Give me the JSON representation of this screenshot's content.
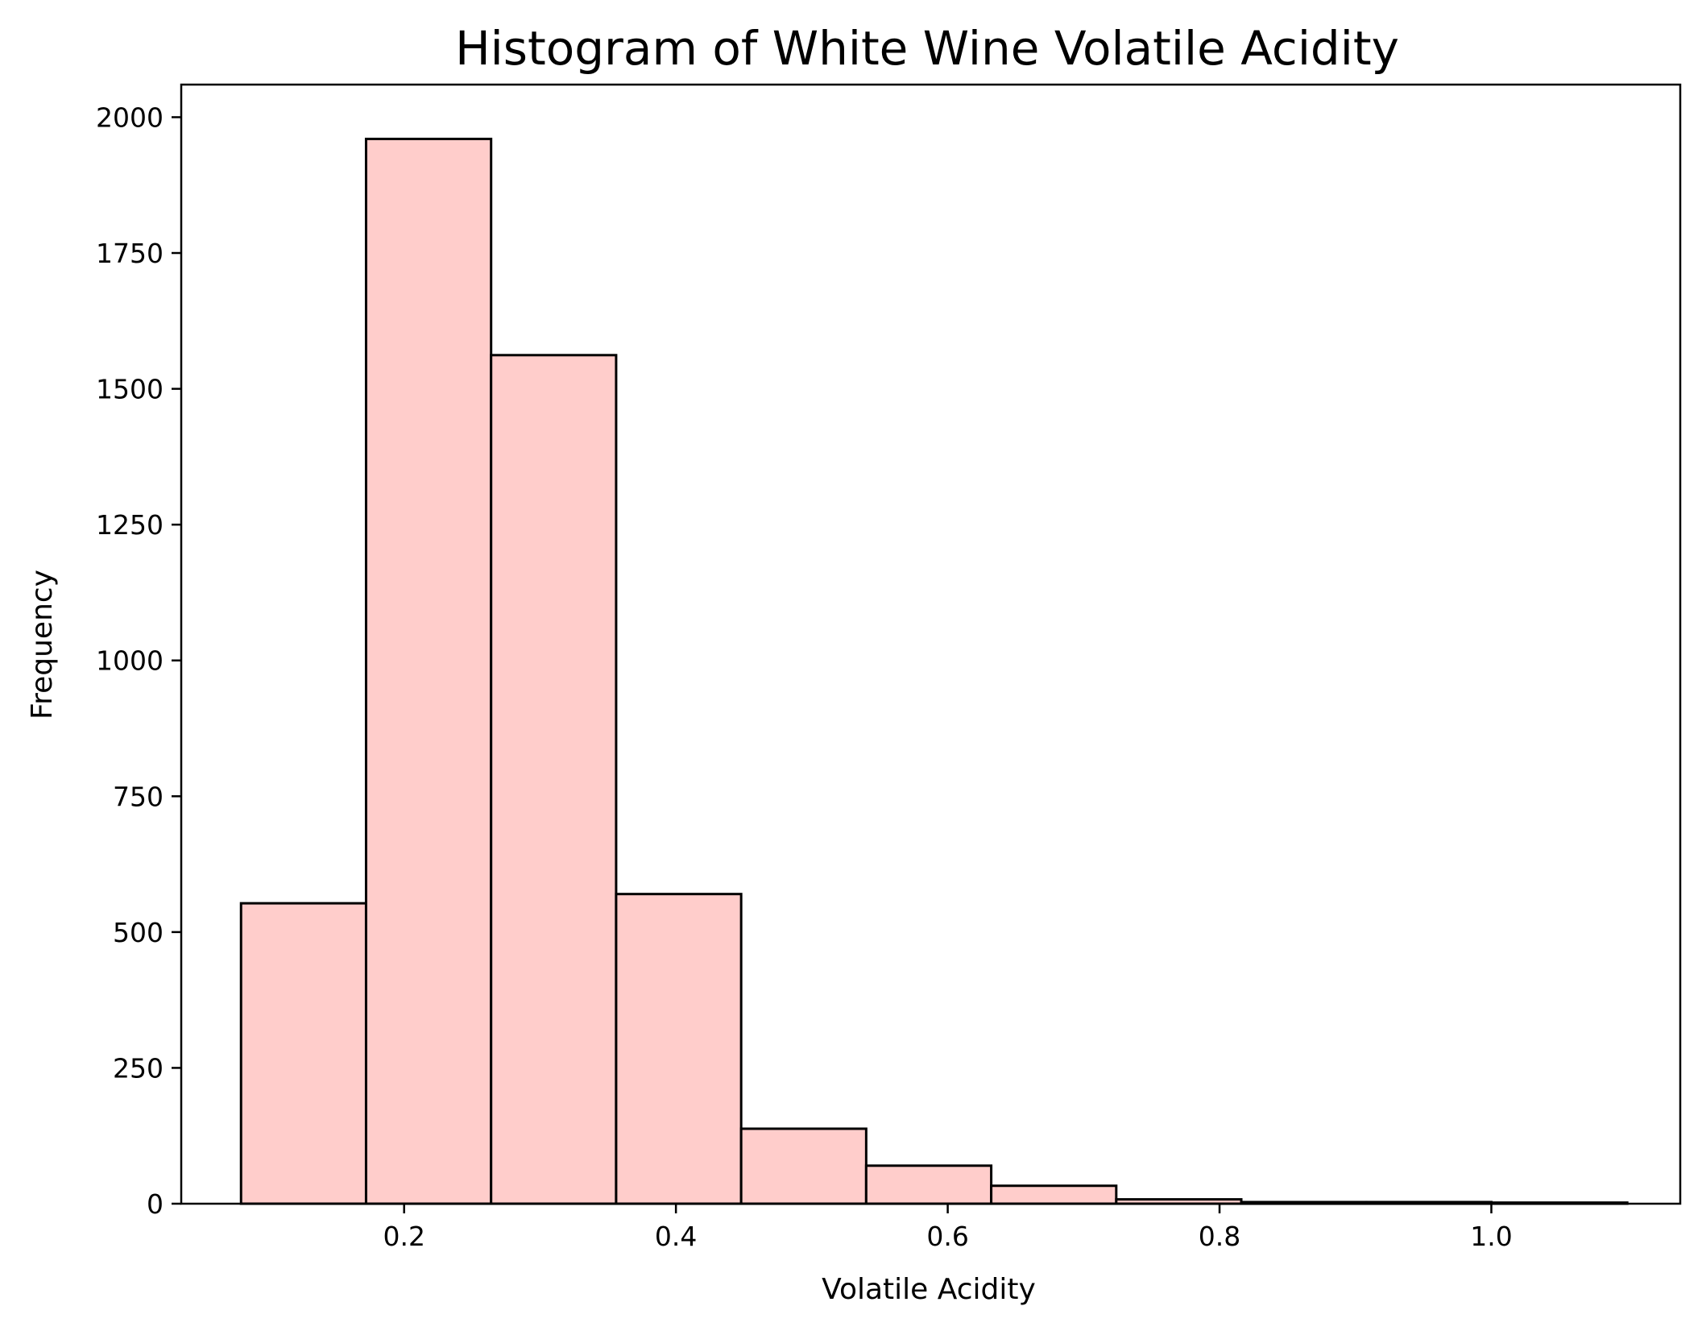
{
  "chart_data": {
    "type": "bar",
    "title": "Histogram of White Wine Volatile Acidity",
    "xlabel": "Volatile Acidity",
    "ylabel": "Frequency",
    "xlim": [
      0.036,
      1.139
    ],
    "ylim": [
      0,
      2060
    ],
    "grid": false,
    "bar_color": "#ffcdcb",
    "edge_color": "#000000",
    "bins": [
      {
        "x0": 0.08,
        "x1": 0.172,
        "count": 553
      },
      {
        "x0": 0.172,
        "x1": 0.264,
        "count": 1960
      },
      {
        "x0": 0.264,
        "x1": 0.356,
        "count": 1562
      },
      {
        "x0": 0.356,
        "x1": 0.448,
        "count": 570
      },
      {
        "x0": 0.448,
        "x1": 0.54,
        "count": 138
      },
      {
        "x0": 0.54,
        "x1": 0.632,
        "count": 70
      },
      {
        "x0": 0.632,
        "x1": 0.724,
        "count": 33
      },
      {
        "x0": 0.724,
        "x1": 0.816,
        "count": 8
      },
      {
        "x0": 0.816,
        "x1": 0.908,
        "count": 3
      },
      {
        "x0": 0.908,
        "x1": 1.0,
        "count": 3
      },
      {
        "x0": 1.0,
        "x1": 1.1,
        "count": 2
      }
    ],
    "x_ticks": [
      {
        "value": 0.2,
        "label": "0.2"
      },
      {
        "value": 0.4,
        "label": "0.4"
      },
      {
        "value": 0.6,
        "label": "0.6"
      },
      {
        "value": 0.8,
        "label": "0.8"
      },
      {
        "value": 1.0,
        "label": "1.0"
      }
    ],
    "y_ticks": [
      {
        "value": 0,
        "label": "0"
      },
      {
        "value": 250,
        "label": "250"
      },
      {
        "value": 500,
        "label": "500"
      },
      {
        "value": 750,
        "label": "750"
      },
      {
        "value": 1000,
        "label": "1000"
      },
      {
        "value": 1250,
        "label": "1250"
      },
      {
        "value": 1500,
        "label": "1500"
      },
      {
        "value": 1750,
        "label": "1750"
      },
      {
        "value": 2000,
        "label": "2000"
      }
    ]
  }
}
